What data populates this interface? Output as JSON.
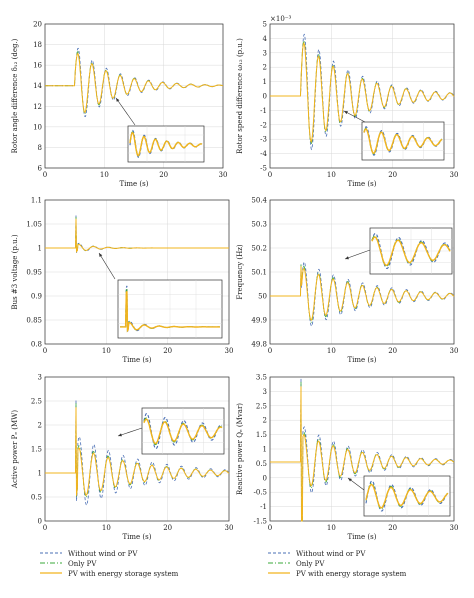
{
  "colors": {
    "without": "#4a6fb5",
    "only_pv": "#3aa83a",
    "pv_storage": "#f2b41d",
    "grid": "#d9d9d9",
    "axis": "#333333"
  },
  "legend": [
    {
      "key": "without",
      "label": "Without wind or PV"
    },
    {
      "key": "only_pv",
      "label": "Only PV"
    },
    {
      "key": "pv_storage",
      "label": "PV with energy storage system"
    }
  ],
  "chart_data": [
    {
      "type": "line",
      "ylabel": "Rotor angle difference δ₁₂ (deg.)",
      "xlabel": "Time (s)",
      "xlim": [
        0,
        30
      ],
      "ylim": [
        6,
        20
      ],
      "xticks": [
        0,
        10,
        20,
        30
      ],
      "yticks": [
        6,
        8,
        10,
        12,
        14,
        16,
        18,
        20
      ],
      "ytick_labels": [
        "6",
        "8",
        "10",
        "12",
        "14",
        "16",
        "18",
        "20"
      ],
      "exponent_label": "",
      "model": {
        "t0": 5,
        "base": 14,
        "freq": 0.42,
        "amp_without": 4.0,
        "amp_pv": 3.6,
        "amp_storage": 3.4,
        "decay": 0.16,
        "spike": 0,
        "spike_drop": 0
      },
      "inset": {
        "t_range": [
          5,
          20
        ]
      },
      "series": [
        {
          "key": "without",
          "name": "Without wind or PV"
        },
        {
          "key": "only_pv",
          "name": "Only PV"
        },
        {
          "key": "pv_storage",
          "name": "PV with energy storage system"
        }
      ]
    },
    {
      "type": "line",
      "ylabel": "Rotor speed difference ω₁₂ (p.u.)",
      "xlabel": "Time (s)",
      "xlim": [
        0,
        30
      ],
      "ylim": [
        -5,
        5
      ],
      "xticks": [
        0,
        10,
        20,
        30
      ],
      "yticks": [
        -5,
        -4,
        -3,
        -2,
        -1,
        0,
        1,
        2,
        3,
        4,
        5
      ],
      "ytick_labels": [
        "-5",
        "-4",
        "-3",
        "-2",
        "-1",
        "0",
        "1",
        "2",
        "3",
        "4",
        "5"
      ],
      "exponent_label": "×10⁻³",
      "model": {
        "t0": 5,
        "base": 0,
        "freq": 0.42,
        "amp_without": 4.6,
        "amp_pv": 4.1,
        "amp_storage": 3.9,
        "decay": 0.12,
        "spike": 0,
        "spike_drop": 0
      },
      "inset": {
        "t_range": [
          10,
          22
        ]
      },
      "series": [
        {
          "key": "without",
          "name": "Without wind or PV"
        },
        {
          "key": "only_pv",
          "name": "Only PV"
        },
        {
          "key": "pv_storage",
          "name": "PV with energy storage system"
        }
      ]
    },
    {
      "type": "line",
      "ylabel": "Bus #3 voltage (p.u.)",
      "xlabel": "Time (s)",
      "xlim": [
        0,
        30
      ],
      "ylim": [
        0.8,
        1.1
      ],
      "xticks": [
        0,
        10,
        20,
        30
      ],
      "yticks": [
        0.8,
        0.85,
        0.9,
        0.95,
        1,
        1.05,
        1.1
      ],
      "ytick_labels": [
        "0.8",
        "0.85",
        "0.9",
        "0.95",
        "1",
        "1.05",
        "1.1"
      ],
      "exponent_label": "",
      "model": {
        "t0": 5,
        "base": 1.0,
        "freq": 0.42,
        "amp_without": 0.012,
        "amp_pv": 0.01,
        "amp_storage": 0.009,
        "decay": 0.35,
        "spike": 0.065,
        "spike_drop": 0.2
      },
      "inset": {
        "t_range": [
          4,
          20
        ]
      },
      "series": [
        {
          "key": "without",
          "name": "Without wind or PV"
        },
        {
          "key": "only_pv",
          "name": "Only PV"
        },
        {
          "key": "pv_storage",
          "name": "PV with energy storage system"
        }
      ]
    },
    {
      "type": "line",
      "ylabel": "Frequency (Hz)",
      "xlabel": "Time (s)",
      "xlim": [
        0,
        30
      ],
      "ylim": [
        49.8,
        50.4
      ],
      "xticks": [
        0,
        10,
        20,
        30
      ],
      "yticks": [
        49.8,
        49.9,
        50,
        50.1,
        50.2,
        50.3,
        50.4
      ],
      "ytick_labels": [
        "49.8",
        "49.9",
        "50",
        "50.1",
        "50.2",
        "50.3",
        "50.4"
      ],
      "exponent_label": "",
      "model": {
        "t0": 5,
        "base": 50.0,
        "freq": 0.42,
        "amp_without": 0.15,
        "amp_pv": 0.13,
        "amp_storage": 0.12,
        "decay": 0.1,
        "spike": 0.1,
        "spike_drop": 0.15
      },
      "inset": {
        "t_range": [
          10,
          18
        ]
      },
      "series": [
        {
          "key": "without",
          "name": "Without wind or PV"
        },
        {
          "key": "only_pv",
          "name": "Only PV"
        },
        {
          "key": "pv_storage",
          "name": "PV with energy storage system"
        }
      ]
    },
    {
      "type": "line",
      "ylabel": "Active power Pₑ (MW)",
      "xlabel": "Time (s)",
      "xlim": [
        0,
        30
      ],
      "ylim": [
        0,
        3
      ],
      "xticks": [
        0,
        10,
        20,
        30
      ],
      "yticks": [
        0,
        0.5,
        1,
        1.5,
        2,
        2.5,
        3
      ],
      "ytick_labels": [
        "0",
        "0.5",
        "1",
        "1.5",
        "2",
        "2.5",
        "3"
      ],
      "exponent_label": "",
      "model": {
        "t0": 5,
        "base": 1.0,
        "freq": 0.42,
        "amp_without": 0.8,
        "amp_pv": 0.6,
        "amp_storage": 0.55,
        "decay": 0.1,
        "spike": 1.35,
        "spike_drop": 0.6
      },
      "inset": {
        "t_range": [
          10,
          20
        ]
      },
      "series": [
        {
          "key": "without",
          "name": "Without wind or PV"
        },
        {
          "key": "only_pv",
          "name": "Only PV"
        },
        {
          "key": "pv_storage",
          "name": "PV with energy storage system"
        }
      ]
    },
    {
      "type": "line",
      "ylabel": "Reactive power Qₑ (Mvar)",
      "xlabel": "Time (s)",
      "xlim": [
        0,
        30
      ],
      "ylim": [
        -1.5,
        3.5
      ],
      "xticks": [
        0,
        10,
        20,
        30
      ],
      "yticks": [
        -1.5,
        -1,
        -0.5,
        0,
        0.5,
        1,
        1.5,
        2,
        2.5,
        3,
        3.5
      ],
      "ytick_labels": [
        "-1.5",
        "-1",
        "-0.5",
        "0",
        "0.5",
        "1",
        "1.5",
        "2",
        "2.5",
        "3",
        "3.5"
      ],
      "exponent_label": "",
      "model": {
        "t0": 5,
        "base": 0.55,
        "freq": 0.42,
        "amp_without": 1.3,
        "amp_pv": 1.1,
        "amp_storage": 1.0,
        "decay": 0.11,
        "spike": 2.6,
        "spike_drop": 1.2
      },
      "inset": {
        "t_range": [
          12,
          22
        ]
      },
      "series": [
        {
          "key": "without",
          "name": "Without wind or PV"
        },
        {
          "key": "only_pv",
          "name": "Only PV"
        },
        {
          "key": "pv_storage",
          "name": "PV with energy storage system"
        }
      ]
    }
  ]
}
